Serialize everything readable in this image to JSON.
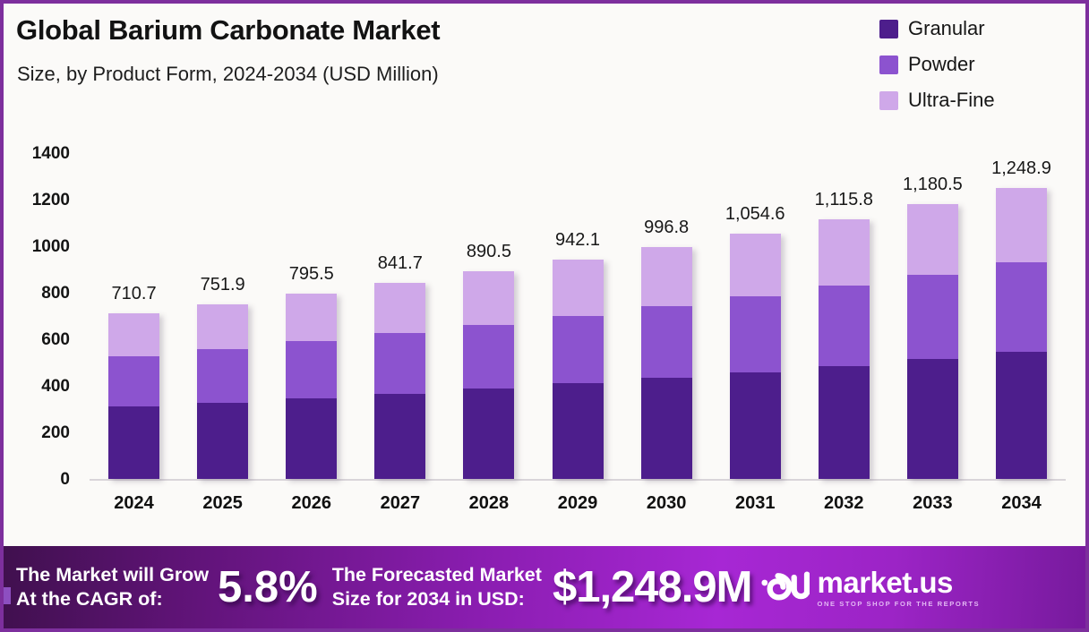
{
  "header": {
    "title": "Global Barium Carbonate Market",
    "subtitle": "Size, by Product Form, 2024-2034 (USD Million)"
  },
  "chart_data": {
    "type": "bar",
    "stacked": true,
    "title": "Global Barium Carbonate Market Size, by Product Form, 2024-2034 (USD Million)",
    "categories": [
      "2024",
      "2025",
      "2026",
      "2027",
      "2028",
      "2029",
      "2030",
      "2031",
      "2032",
      "2033",
      "2034"
    ],
    "series": [
      {
        "name": "Granular",
        "color": "#4D1E8C",
        "values": [
          309.9,
          327.8,
          346.8,
          367.0,
          388.3,
          410.8,
          434.6,
          459.8,
          486.5,
          514.7,
          544.5
        ]
      },
      {
        "name": "Powder",
        "color": "#8C53CF",
        "values": [
          218.9,
          231.6,
          245.0,
          259.2,
          274.3,
          290.2,
          307.0,
          324.8,
          343.7,
          363.6,
          384.7
        ]
      },
      {
        "name": "Ultra-Fine",
        "color": "#CFA8E9",
        "values": [
          181.9,
          192.5,
          203.7,
          215.5,
          227.9,
          241.1,
          255.2,
          270.0,
          285.6,
          302.2,
          319.7
        ]
      }
    ],
    "totals": [
      710.7,
      751.9,
      795.5,
      841.7,
      890.5,
      942.1,
      996.8,
      1054.6,
      1115.8,
      1180.5,
      1248.9
    ],
    "total_labels": [
      "710.7",
      "751.9",
      "795.5",
      "841.7",
      "890.5",
      "942.1",
      "996.8",
      "1,054.6",
      "1,115.8",
      "1,180.5",
      "1,248.9"
    ],
    "xlabel": "",
    "ylabel": "",
    "ylim": [
      0,
      1400
    ],
    "ytick_step": 200,
    "grid": false,
    "legend_position": "top-right"
  },
  "banner": {
    "cagr_label_line1": "The Market will Grow",
    "cagr_label_line2": "At the CAGR of:",
    "cagr_value": "5.8%",
    "forecast_label_line1": "The Forecasted Market",
    "forecast_label_line2": "Size for 2034 in USD:",
    "forecast_value": "$1,248.9M",
    "brand_name": "market.us",
    "brand_tagline": "ONE STOP SHOP FOR THE REPORTS"
  }
}
